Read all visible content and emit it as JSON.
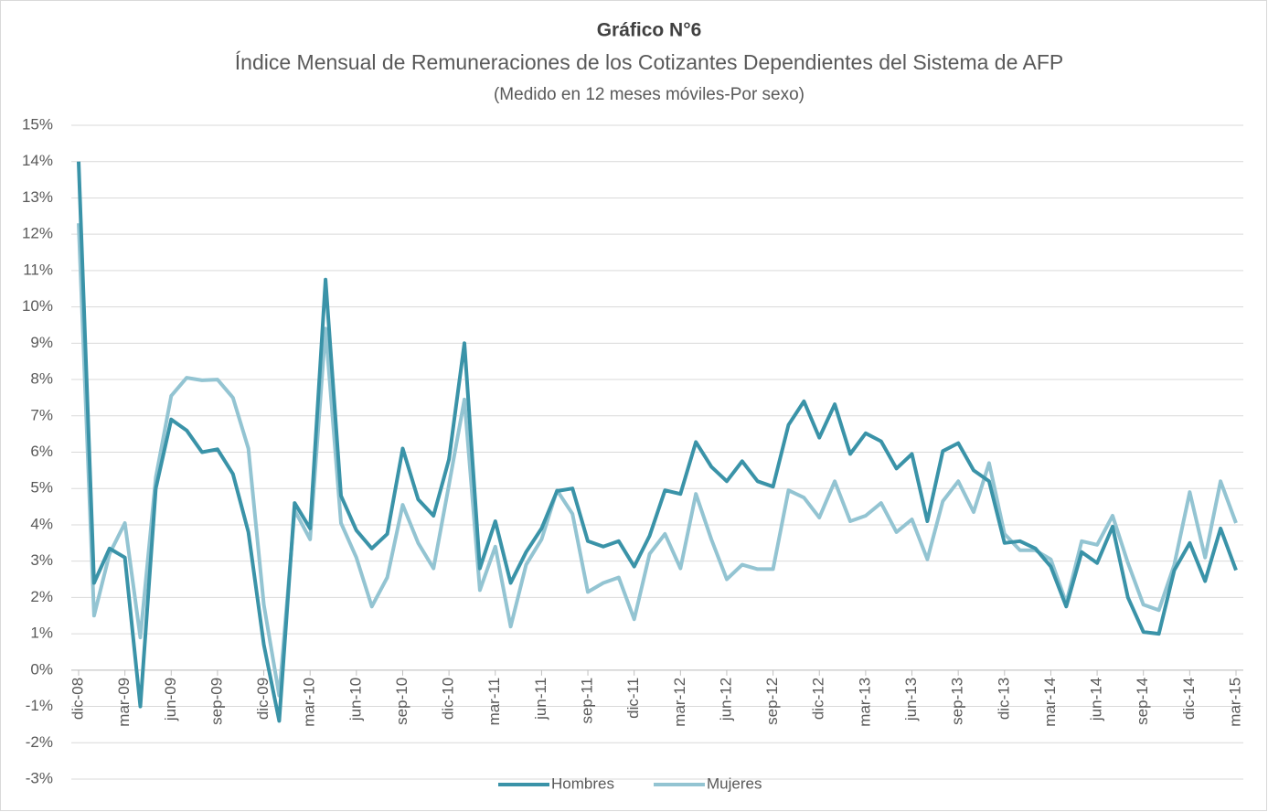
{
  "chart_data": {
    "type": "line",
    "title": "Gráfico N°6",
    "subtitle": "Índice Mensual de Remuneraciones de los Cotizantes Dependientes del Sistema de AFP",
    "note": "(Medido en 12 meses móviles-Por sexo)",
    "categories": [
      "dic-08",
      null,
      null,
      "mar-09",
      null,
      null,
      "jun-09",
      null,
      null,
      "sep-09",
      null,
      null,
      "dic-09",
      null,
      null,
      "mar-10",
      null,
      null,
      "jun-10",
      null,
      null,
      "sep-10",
      null,
      null,
      "dic-10",
      null,
      null,
      "mar-11",
      null,
      null,
      "jun-11",
      null,
      null,
      "sep-11",
      null,
      null,
      "dic-11",
      null,
      null,
      "mar-12",
      null,
      null,
      "jun-12",
      null,
      null,
      "sep-12",
      null,
      null,
      "dic-12",
      null,
      null,
      "mar-13",
      null,
      null,
      "jun-13",
      null,
      null,
      "sep-13",
      null,
      null,
      "dic-13",
      null,
      null,
      "mar-14",
      null,
      null,
      "jun-14",
      null,
      null,
      "sep-14",
      null,
      null,
      "dic-14",
      null,
      null,
      "mar-15"
    ],
    "series": [
      {
        "name": "Hombres",
        "color": "#3a93a8",
        "values": [
          14.0,
          2.4,
          3.35,
          3.1,
          -1.0,
          5.0,
          6.9,
          6.6,
          6.0,
          6.08,
          5.4,
          3.8,
          0.7,
          -1.4,
          4.6,
          3.9,
          10.75,
          4.8,
          3.85,
          3.35,
          3.75,
          6.1,
          4.7,
          4.25,
          5.8,
          9.0,
          2.8,
          4.1,
          2.4,
          3.25,
          3.9,
          4.93,
          5.0,
          3.55,
          3.4,
          3.55,
          2.85,
          3.7,
          4.95,
          4.85,
          6.28,
          5.6,
          5.2,
          5.75,
          5.2,
          5.05,
          6.75,
          7.4,
          6.4,
          7.32,
          5.95,
          6.52,
          6.3,
          5.55,
          5.95,
          4.1,
          6.03,
          6.25,
          5.5,
          5.2,
          3.5,
          3.55,
          3.35,
          2.85,
          1.75,
          3.25,
          2.95,
          3.95,
          2.0,
          1.05,
          1.0,
          2.75,
          3.5,
          2.45,
          3.9,
          2.75
        ]
      },
      {
        "name": "Mujeres",
        "color": "#93c4d2",
        "values": [
          12.3,
          1.5,
          3.2,
          4.05,
          0.9,
          5.3,
          7.55,
          8.05,
          7.98,
          8.0,
          7.5,
          6.1,
          1.8,
          -0.7,
          4.4,
          3.6,
          9.4,
          4.05,
          3.1,
          1.75,
          2.55,
          4.55,
          3.5,
          2.8,
          5.1,
          7.45,
          2.2,
          3.4,
          1.2,
          2.9,
          3.6,
          4.95,
          4.3,
          2.15,
          2.4,
          2.55,
          1.4,
          3.2,
          3.75,
          2.8,
          4.85,
          3.6,
          2.5,
          2.9,
          2.78,
          2.78,
          4.95,
          4.75,
          4.2,
          5.2,
          4.1,
          4.25,
          4.6,
          3.8,
          4.15,
          3.05,
          4.65,
          5.2,
          4.35,
          5.7,
          3.75,
          3.3,
          3.3,
          3.05,
          1.85,
          3.55,
          3.45,
          4.25,
          2.95,
          1.8,
          1.65,
          2.9,
          4.9,
          3.1,
          5.2,
          4.05
        ]
      }
    ],
    "ylim": [
      -3,
      15
    ],
    "yticks": [
      {
        "value": -3,
        "label": "-3%"
      },
      {
        "value": -2,
        "label": "-2%"
      },
      {
        "value": -1,
        "label": "-1%"
      },
      {
        "value": 0,
        "label": "0%"
      },
      {
        "value": 1,
        "label": "1%"
      },
      {
        "value": 2,
        "label": "2%"
      },
      {
        "value": 3,
        "label": "3%"
      },
      {
        "value": 4,
        "label": "4%"
      },
      {
        "value": 5,
        "label": "5%"
      },
      {
        "value": 6,
        "label": "6%"
      },
      {
        "value": 7,
        "label": "7%"
      },
      {
        "value": 8,
        "label": "8%"
      },
      {
        "value": 9,
        "label": "9%"
      },
      {
        "value": 10,
        "label": "10%"
      },
      {
        "value": 11,
        "label": "11%"
      },
      {
        "value": 12,
        "label": "12%"
      },
      {
        "value": 13,
        "label": "13%"
      },
      {
        "value": 14,
        "label": "14%"
      },
      {
        "value": 15,
        "label": "15%"
      }
    ],
    "grid": true,
    "legend": "bottom"
  }
}
